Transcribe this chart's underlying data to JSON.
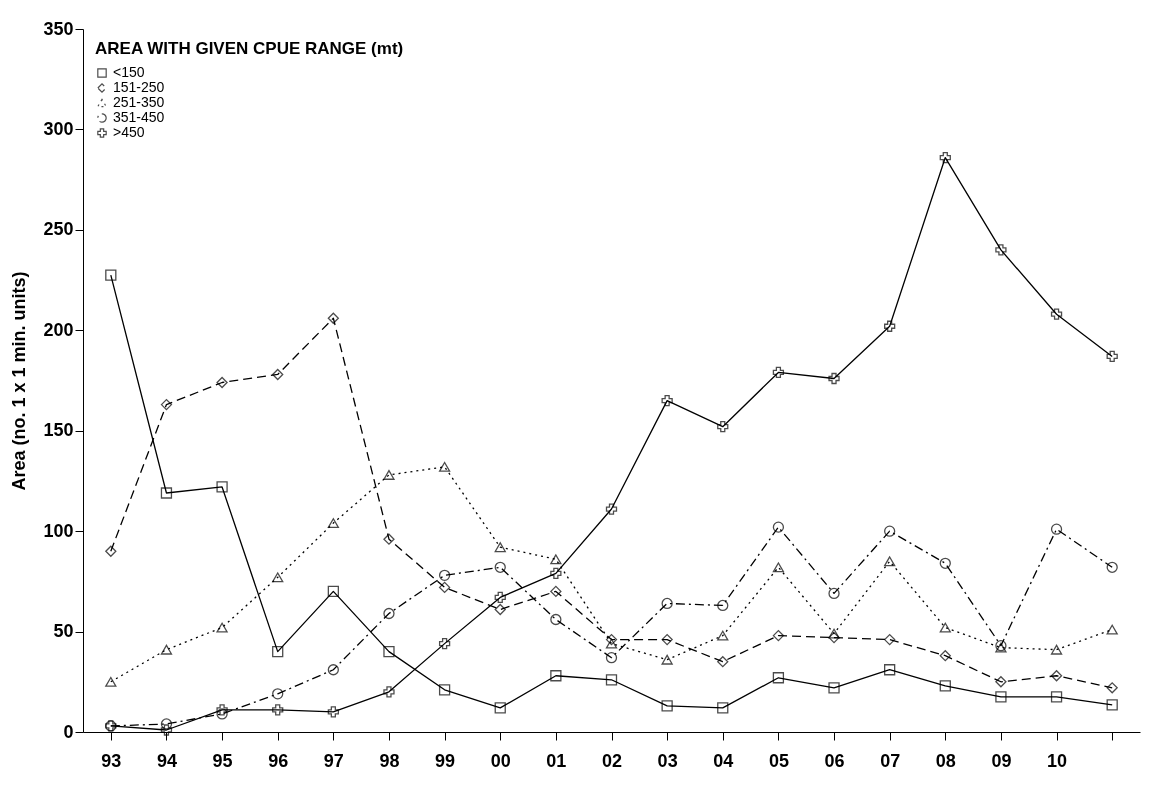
{
  "chart_data": {
    "type": "line",
    "ylabel": "Area (no. 1 x 1 min. units)",
    "legend_title": "AREA WITH GIVEN CPUE RANGE (mt)",
    "legend": "top left",
    "grid": false,
    "categories": [
      "93",
      "94",
      "95",
      "96",
      "97",
      "98",
      "99",
      "00",
      "01",
      "02",
      "03",
      "04",
      "05",
      "06",
      "07",
      "08",
      "09",
      "10",
      null
    ],
    "ylim": [
      0,
      350
    ],
    "yticks": [
      0,
      50,
      100,
      150,
      200,
      250,
      300,
      350
    ],
    "series": [
      {
        "name": "<150",
        "color": "#000000",
        "marker": "square",
        "line_style": "solid",
        "values": [
          227.5,
          119,
          122,
          40,
          70,
          40,
          21,
          12,
          28,
          26,
          13,
          12,
          27,
          22,
          31,
          23,
          17.5,
          17.5,
          13.5
        ]
      },
      {
        "name": "151-250",
        "color": "#000000",
        "marker": "diamond",
        "line_style": "dashed",
        "values": [
          90,
          163,
          174,
          178,
          206,
          96,
          72,
          61,
          70,
          46,
          46,
          35,
          48,
          47,
          46,
          38,
          25,
          28,
          22
        ]
      },
      {
        "name": "251-350",
        "color": "#000000",
        "marker": "triangle",
        "line_style": "dotted",
        "values": [
          25,
          41,
          52,
          77,
          104,
          128,
          132,
          92,
          86,
          44,
          36,
          48,
          82,
          49,
          85,
          52,
          42,
          41,
          51
        ]
      },
      {
        "name": "351-450",
        "color": "#000000",
        "marker": "circle",
        "line_style": "dashdot",
        "values": [
          3,
          4,
          9,
          19,
          31,
          59,
          78,
          82,
          56,
          37,
          64,
          63,
          102,
          69,
          100,
          84,
          43,
          101,
          82
        ]
      },
      {
        "name": ">450",
        "color": "#000000",
        "marker": "cross",
        "line_style": "solid",
        "values": [
          3,
          1,
          11,
          11,
          10,
          20,
          44,
          67,
          79,
          111,
          165,
          152,
          179,
          176,
          202,
          286,
          240,
          208,
          187
        ]
      }
    ]
  }
}
